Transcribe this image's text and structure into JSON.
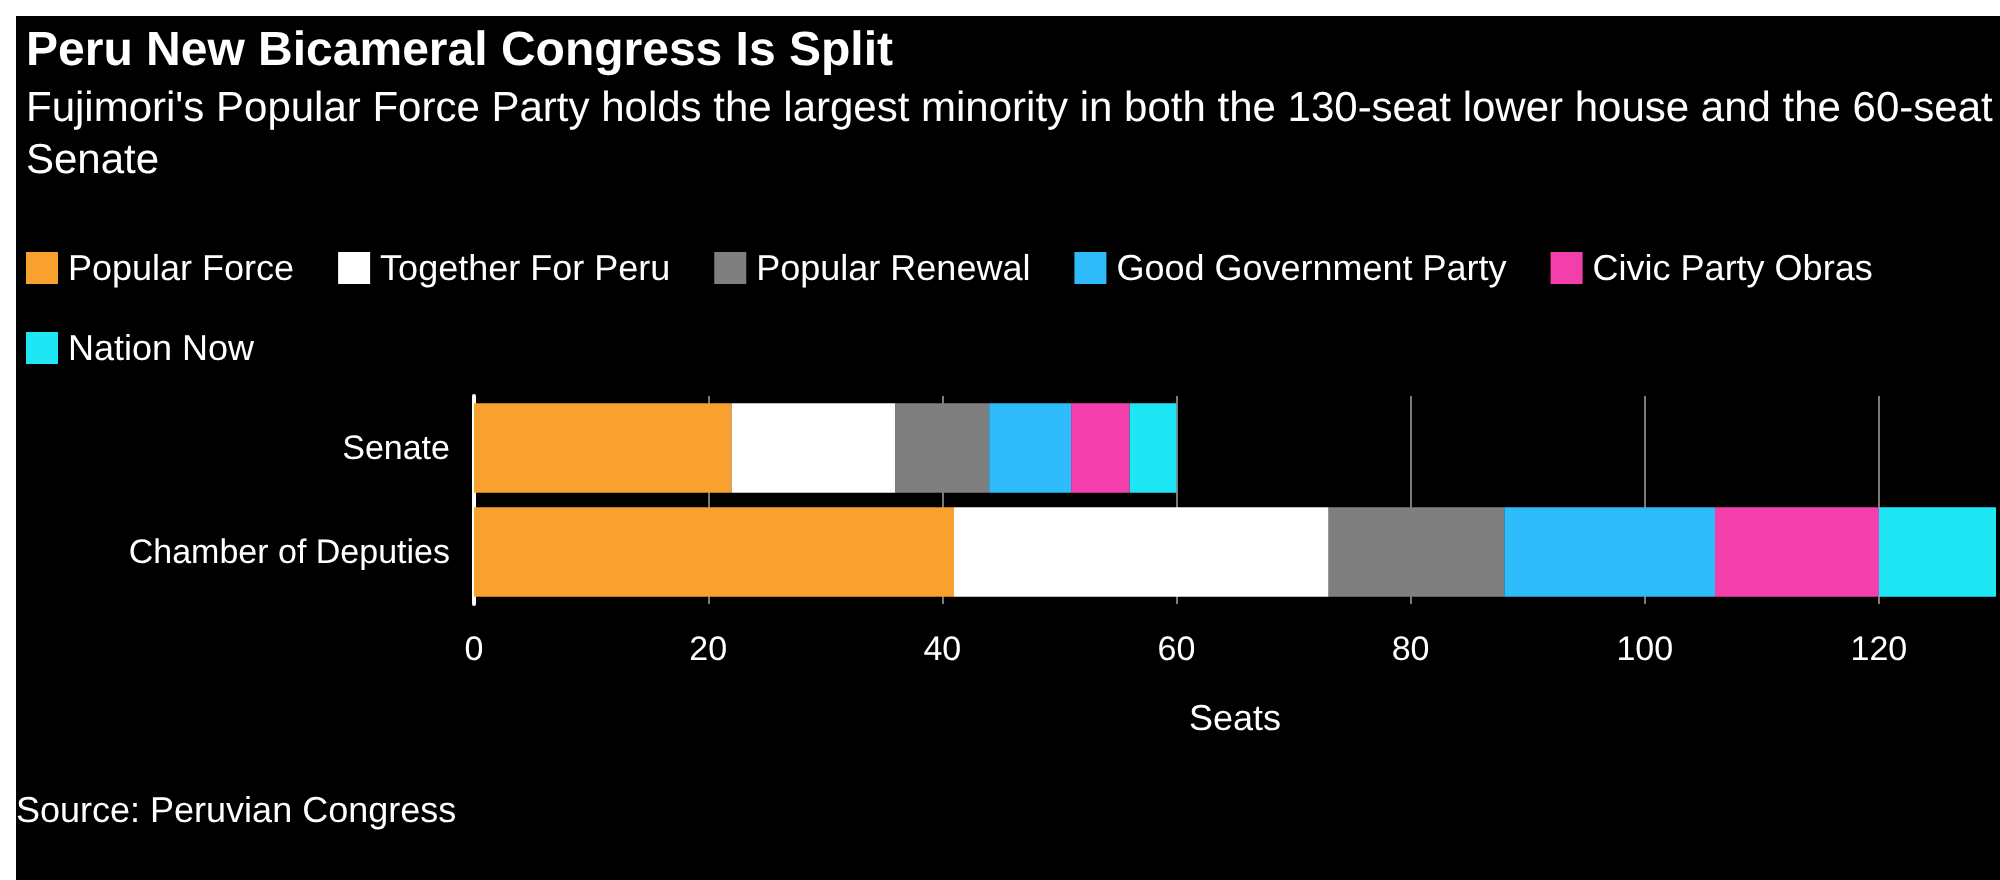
{
  "chart_data": {
    "type": "bar",
    "orientation": "horizontal",
    "stacked": true,
    "title": "Peru New Bicameral Congress Is Split",
    "subtitle": "Fujimori's Popular Force Party holds the largest minority in both the 130-seat lower house and the 60-seat Senate",
    "xlabel": "Seats",
    "annotations": [
      "Source: Peruvian Congress"
    ],
    "categories": [
      "Senate",
      "Chamber of Deputies"
    ],
    "series": [
      {
        "name": "Popular Force",
        "color": "#f8a12f",
        "values": [
          22,
          41
        ]
      },
      {
        "name": "Together For Peru",
        "color": "#ffffff",
        "values": [
          14,
          32
        ]
      },
      {
        "name": "Popular Renewal",
        "color": "#7f7f7f",
        "values": [
          8,
          15
        ]
      },
      {
        "name": "Good Government Party",
        "color": "#2dbcf9",
        "values": [
          7,
          18
        ]
      },
      {
        "name": "Civic Party Obras",
        "color": "#f43eac",
        "values": [
          5,
          14
        ]
      },
      {
        "name": "Nation Now",
        "color": "#1ee6f5",
        "values": [
          4,
          10
        ]
      }
    ],
    "xlim": [
      0,
      130
    ],
    "xticks": [
      0,
      20,
      40,
      60,
      80,
      100,
      120
    ],
    "grid": "x",
    "legend": "top left"
  }
}
